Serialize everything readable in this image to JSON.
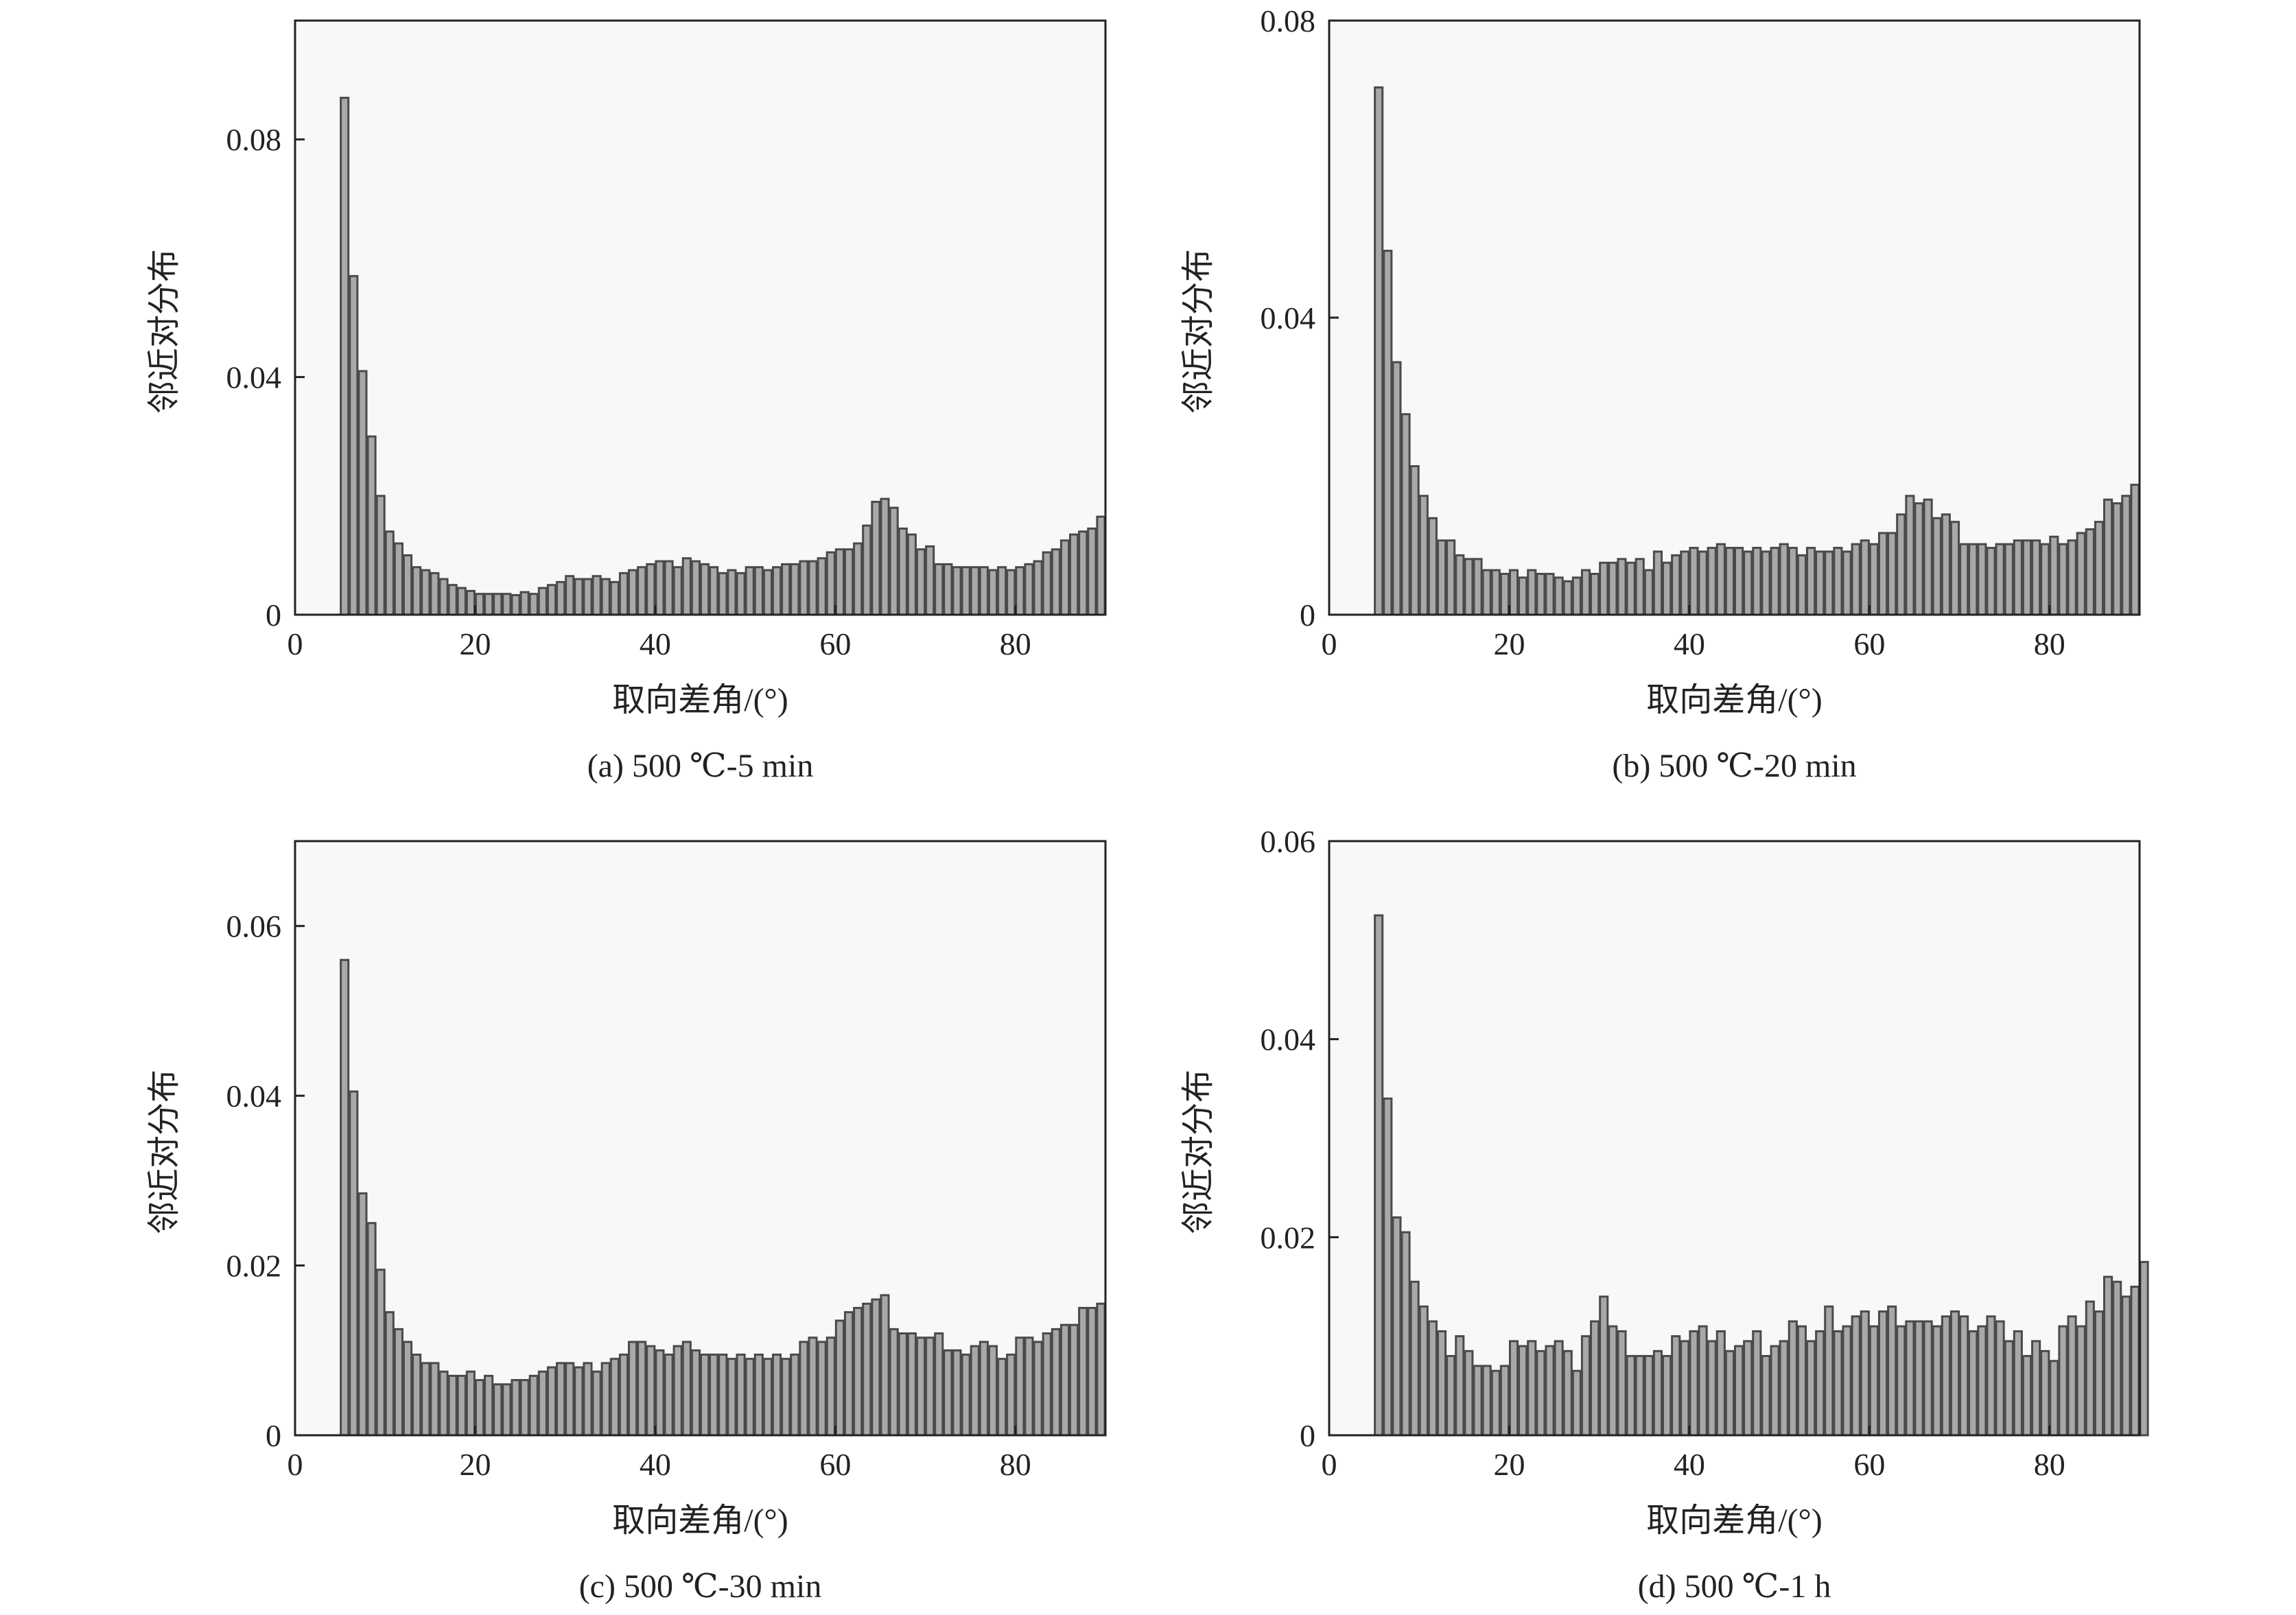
{
  "chart_data": [
    {
      "type": "bar",
      "caption": "(a) 500 ℃-5 min",
      "xlabel": "取向差角/(°)",
      "ylabel": "邻近对分布",
      "xlim": [
        0,
        90
      ],
      "ylim": [
        0,
        0.1
      ],
      "xticks": [
        "0",
        "20",
        "40",
        "60",
        "80"
      ],
      "yticks": [
        "0",
        "0.04",
        "0.08"
      ],
      "bin_start": 5,
      "bin_width": 1,
      "values": [
        0.087,
        0.057,
        0.041,
        0.03,
        0.02,
        0.014,
        0.012,
        0.01,
        0.008,
        0.0075,
        0.007,
        0.006,
        0.005,
        0.0045,
        0.004,
        0.0035,
        0.0035,
        0.0035,
        0.0035,
        0.0033,
        0.0038,
        0.0035,
        0.0045,
        0.005,
        0.0055,
        0.0065,
        0.006,
        0.006,
        0.0065,
        0.006,
        0.0055,
        0.007,
        0.0075,
        0.008,
        0.0085,
        0.009,
        0.009,
        0.008,
        0.0095,
        0.009,
        0.0085,
        0.008,
        0.007,
        0.0075,
        0.007,
        0.008,
        0.008,
        0.0075,
        0.008,
        0.0085,
        0.0085,
        0.009,
        0.009,
        0.0095,
        0.0105,
        0.011,
        0.011,
        0.012,
        0.015,
        0.019,
        0.0195,
        0.018,
        0.0145,
        0.0135,
        0.011,
        0.0115,
        0.0085,
        0.0085,
        0.008,
        0.008,
        0.008,
        0.008,
        0.0075,
        0.008,
        0.0075,
        0.008,
        0.0085,
        0.009,
        0.0105,
        0.011,
        0.0125,
        0.0135,
        0.014,
        0.0145,
        0.0165
      ]
    },
    {
      "type": "bar",
      "caption": "(b) 500 ℃-20 min",
      "xlabel": "取向差角/(°)",
      "ylabel": "邻近对分布",
      "xlim": [
        0,
        90
      ],
      "ylim": [
        0,
        0.08
      ],
      "xticks": [
        "0",
        "20",
        "40",
        "60",
        "80"
      ],
      "yticks": [
        "0",
        "0.04",
        "0.08"
      ],
      "bin_start": 5,
      "bin_width": 1,
      "values": [
        0.071,
        0.049,
        0.034,
        0.027,
        0.02,
        0.016,
        0.013,
        0.01,
        0.01,
        0.008,
        0.0075,
        0.0075,
        0.006,
        0.006,
        0.0055,
        0.006,
        0.005,
        0.006,
        0.0055,
        0.0055,
        0.005,
        0.0045,
        0.005,
        0.006,
        0.0055,
        0.007,
        0.007,
        0.0075,
        0.007,
        0.0075,
        0.006,
        0.0085,
        0.007,
        0.008,
        0.0085,
        0.009,
        0.0085,
        0.009,
        0.0095,
        0.009,
        0.009,
        0.0085,
        0.009,
        0.0085,
        0.009,
        0.0095,
        0.009,
        0.008,
        0.009,
        0.0085,
        0.0085,
        0.009,
        0.0085,
        0.0095,
        0.01,
        0.0095,
        0.011,
        0.011,
        0.0135,
        0.016,
        0.015,
        0.0155,
        0.013,
        0.0135,
        0.0125,
        0.0095,
        0.0095,
        0.0095,
        0.009,
        0.0095,
        0.0095,
        0.01,
        0.01,
        0.01,
        0.0095,
        0.0105,
        0.0095,
        0.01,
        0.011,
        0.0115,
        0.0125,
        0.0155,
        0.015,
        0.016,
        0.0175
      ]
    },
    {
      "type": "bar",
      "caption": "(c) 500 ℃-30 min",
      "xlabel": "取向差角/(°)",
      "ylabel": "邻近对分布",
      "xlim": [
        0,
        90
      ],
      "ylim": [
        0,
        0.07
      ],
      "xticks": [
        "0",
        "20",
        "40",
        "60",
        "80"
      ],
      "yticks": [
        "0",
        "0.02",
        "0.04",
        "0.06"
      ],
      "bin_start": 5,
      "bin_width": 1,
      "values": [
        0.056,
        0.0405,
        0.0285,
        0.025,
        0.0195,
        0.0145,
        0.0125,
        0.011,
        0.0095,
        0.0085,
        0.0085,
        0.0075,
        0.007,
        0.007,
        0.0075,
        0.0065,
        0.007,
        0.006,
        0.006,
        0.0065,
        0.0065,
        0.007,
        0.0075,
        0.008,
        0.0085,
        0.0085,
        0.008,
        0.0085,
        0.0075,
        0.0085,
        0.009,
        0.0095,
        0.011,
        0.011,
        0.0105,
        0.01,
        0.0095,
        0.0105,
        0.011,
        0.01,
        0.0095,
        0.0095,
        0.0095,
        0.009,
        0.0095,
        0.009,
        0.0095,
        0.009,
        0.0095,
        0.009,
        0.0095,
        0.011,
        0.0115,
        0.011,
        0.0115,
        0.0135,
        0.0145,
        0.015,
        0.0155,
        0.016,
        0.0165,
        0.0125,
        0.012,
        0.012,
        0.0115,
        0.0115,
        0.012,
        0.01,
        0.01,
        0.0095,
        0.0105,
        0.011,
        0.0105,
        0.009,
        0.0095,
        0.0115,
        0.0115,
        0.011,
        0.012,
        0.0125,
        0.013,
        0.013,
        0.015,
        0.015,
        0.0155
      ]
    },
    {
      "type": "bar",
      "caption": "(d) 500 ℃-1 h",
      "xlabel": "取向差角/(°)",
      "ylabel": "邻近对分布",
      "xlim": [
        0,
        90
      ],
      "ylim": [
        0,
        0.06
      ],
      "xticks": [
        "0",
        "20",
        "40",
        "60",
        "80"
      ],
      "yticks": [
        "0",
        "0.02",
        "0.04",
        "0.06"
      ],
      "bin_start": 5,
      "bin_width": 1,
      "values": [
        0.0525,
        0.034,
        0.022,
        0.0205,
        0.0155,
        0.013,
        0.0115,
        0.0105,
        0.008,
        0.01,
        0.0085,
        0.007,
        0.007,
        0.0065,
        0.007,
        0.0095,
        0.009,
        0.0095,
        0.0085,
        0.009,
        0.0095,
        0.0085,
        0.0065,
        0.01,
        0.0115,
        0.014,
        0.011,
        0.0105,
        0.008,
        0.008,
        0.008,
        0.0085,
        0.008,
        0.01,
        0.0095,
        0.0105,
        0.011,
        0.0095,
        0.0105,
        0.0085,
        0.009,
        0.0095,
        0.0105,
        0.008,
        0.009,
        0.0095,
        0.0115,
        0.011,
        0.0095,
        0.0105,
        0.013,
        0.0105,
        0.011,
        0.012,
        0.0125,
        0.011,
        0.0125,
        0.013,
        0.011,
        0.0115,
        0.0115,
        0.0115,
        0.011,
        0.012,
        0.0125,
        0.012,
        0.0105,
        0.011,
        0.012,
        0.0115,
        0.0095,
        0.0105,
        0.008,
        0.0095,
        0.0085,
        0.0075,
        0.011,
        0.012,
        0.011,
        0.0135,
        0.0125,
        0.016,
        0.0155,
        0.014,
        0.015,
        0.0175
      ]
    }
  ],
  "colors": {
    "bar_fill": "#a8a8a8",
    "bar_edge": "#4a4a4a",
    "plot_bg": "#f8f8f8",
    "axis": "#222222"
  }
}
